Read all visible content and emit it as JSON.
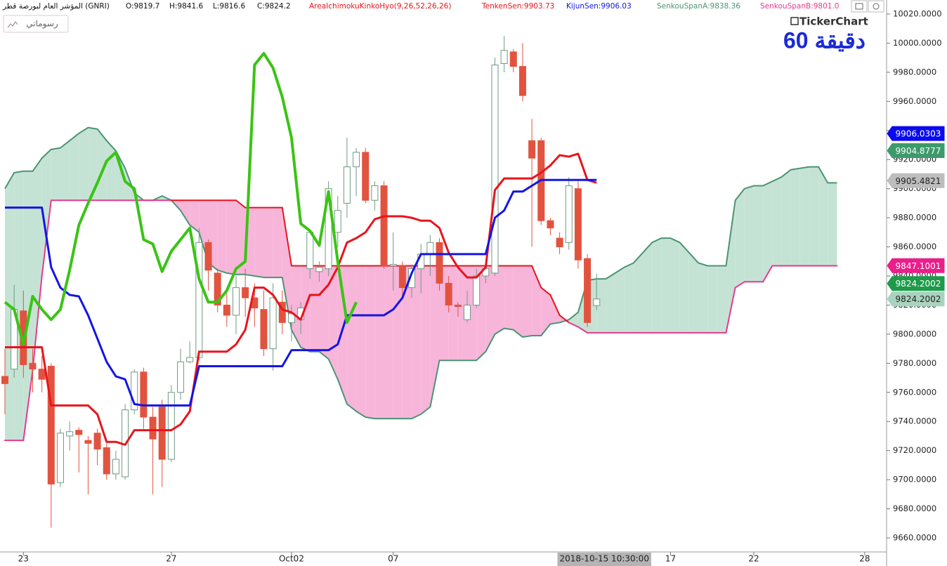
{
  "header": {
    "symbol": "المؤشر العام لبورصة قطر (GNRI)",
    "ohlc": [
      "O:9819.7",
      "H:9841.6",
      "L:9816.6",
      "C:9824.2"
    ],
    "indicator": "AreaIchimokuKinkoHyo(9,26,52,26,26)"
  },
  "toolbar": {
    "drawings_button": "رسوماتي"
  },
  "logo": "TickerChart",
  "timeframe": "60 دقيقة",
  "chart_data": {
    "type": "candlestick",
    "categories": [
      null,
      null,
      "23",
      null,
      null,
      null,
      null,
      null,
      null,
      null,
      null,
      null,
      null,
      null,
      null,
      null,
      null,
      null,
      "27",
      null,
      null,
      null,
      null,
      null,
      null,
      null,
      null,
      null,
      null,
      null,
      null,
      "Oct02",
      null,
      null,
      null,
      null,
      null,
      null,
      null,
      null,
      null,
      null,
      "07",
      null,
      null,
      null,
      null,
      null,
      null,
      null,
      null,
      null,
      null,
      null,
      null,
      null,
      null,
      null,
      null,
      null,
      null,
      null,
      null,
      null,
      "2018-10-15 10:30:00",
      null,
      null,
      null,
      null,
      null,
      null,
      null,
      "17",
      null,
      null,
      null,
      null,
      null,
      null,
      null,
      null,
      "22",
      null,
      null,
      null,
      null,
      null,
      null,
      null,
      null,
      null,
      null,
      null,
      "28"
    ],
    "highlighted_category": 64,
    "open": [
      9771,
      9776,
      9816,
      9780,
      9776,
      9778,
      9698,
      9730,
      9734,
      9727,
      9732,
      9722,
      9704,
      9702,
      9748,
      9774,
      9743,
      9750,
      9714,
      9760,
      9781,
      9784,
      9863,
      9842,
      9820,
      9813,
      9832,
      9825,
      9817,
      9790,
      9822,
      9808,
      9810,
      9845,
      9843,
      9845,
      9870,
      9890,
      9915,
      9925,
      9892,
      9902,
      9847,
      9847,
      9832,
      9845,
      9855,
      9863,
      9835,
      9820,
      9810,
      9820,
      9840,
      9842,
      9986,
      9994,
      9984,
      9933,
      9933,
      9878,
      9866,
      9863,
      9900,
      9852,
      9819.7,
      null,
      null,
      null,
      null,
      null,
      null,
      null,
      null,
      null,
      null,
      null,
      null,
      null,
      null,
      null,
      null,
      null,
      null,
      null,
      null,
      null,
      null,
      null,
      null,
      null,
      null,
      null,
      null,
      null
    ],
    "high": [
      9790,
      9834,
      9830,
      9790,
      9785,
      9780,
      9735,
      9740,
      9736,
      9730,
      9735,
      9725,
      9720,
      9752,
      9776,
      9777,
      9750,
      9755,
      9765,
      9790,
      9795,
      9873,
      9865,
      9845,
      9830,
      9840,
      9845,
      9835,
      9830,
      9835,
      9830,
      9820,
      9822,
      9872,
      9850,
      9905,
      9895,
      9935,
      9928,
      9928,
      9905,
      9905,
      9870,
      9850,
      9848,
      9862,
      9868,
      9866,
      9840,
      9822,
      9830,
      9845,
      9848,
      9990,
      10005,
      9996,
      10000,
      9948,
      9935,
      9880,
      9870,
      9908,
      9905,
      9855,
      9841.6,
      null,
      null,
      null,
      null,
      null,
      null,
      null,
      null,
      null,
      null,
      null,
      null,
      null,
      null,
      null,
      null,
      null,
      null,
      null,
      null,
      null,
      null,
      null,
      null,
      null,
      null,
      null,
      null,
      null
    ],
    "low": [
      9745,
      9770,
      9770,
      9760,
      9760,
      9667,
      9695,
      9720,
      9705,
      9690,
      9710,
      9700,
      9700,
      9700,
      9745,
      9735,
      9690,
      9695,
      9712,
      9755,
      9780,
      9782,
      9830,
      9815,
      9805,
      9800,
      9812,
      9805,
      9785,
      9775,
      9800,
      9795,
      9800,
      9838,
      9836,
      9840,
      9860,
      9880,
      9895,
      9890,
      9885,
      9845,
      9830,
      9825,
      9825,
      9828,
      9840,
      9830,
      9815,
      9812,
      9808,
      9818,
      9835,
      9840,
      9980,
      9980,
      9960,
      9860,
      9875,
      9868,
      9855,
      9858,
      9845,
      9805,
      9816.6,
      null,
      null,
      null,
      null,
      null,
      null,
      null,
      null,
      null,
      null,
      null,
      null,
      null,
      null,
      null,
      null,
      null,
      null,
      null,
      null,
      null,
      null,
      null,
      null,
      null,
      null,
      null,
      null,
      null
    ],
    "close": [
      9766,
      9817,
      9779,
      9776,
      9769,
      9697,
      9732,
      9733,
      9731,
      9725,
      9721,
      9704,
      9714,
      9748,
      9774,
      9743,
      9728,
      9714,
      9760,
      9781,
      9784,
      9863,
      9844,
      9820,
      9813,
      9832,
      9825,
      9818,
      9790,
      9825,
      9808,
      9814,
      9818,
      9870,
      9846,
      9900,
      9885,
      9915,
      9925,
      9892,
      9902,
      9847,
      9848,
      9832,
      9845,
      9855,
      9863,
      9835,
      9820,
      9819,
      9820,
      9840,
      9845,
      9985,
      9995,
      9984,
      9964,
      9921,
      9878,
      9873,
      9860,
      9902,
      9851,
      9808,
      9824.2,
      null,
      null,
      null,
      null,
      null,
      null,
      null,
      null,
      null,
      null,
      null,
      null,
      null,
      null,
      null,
      null,
      null,
      null,
      null,
      null,
      null,
      null,
      null,
      null,
      null,
      null,
      null,
      null,
      null
    ],
    "up_color": "#6f9a84",
    "down_color": "#e2533f",
    "series": [
      {
        "name": "TenkenSen:9903.73",
        "color": "#e8141c",
        "width": 3,
        "values": [
          9791,
          9791,
          9791,
          9791,
          9791,
          9751,
          9751,
          9751,
          9751,
          9751,
          9745,
          9726,
          9726,
          9724,
          9734,
          9734,
          9734,
          9734,
          9734,
          9738,
          9747,
          9788,
          9788,
          9788,
          9788,
          9793,
          9803,
          9832,
          9832,
          9827,
          9817,
          9815,
          9810,
          9827,
          9827,
          9834,
          9846,
          9863,
          9866,
          9870,
          9879,
          9881,
          9881,
          9881,
          9880,
          9878,
          9878,
          9873,
          9856,
          9846,
          9839,
          9839,
          9846,
          9899,
          9907,
          9907,
          9907,
          9907,
          9911,
          9916,
          9923,
          9922,
          9924,
          9906,
          9904,
          null,
          null,
          null,
          null,
          null,
          null,
          null,
          null,
          null,
          null,
          null,
          null,
          null,
          null,
          null,
          null,
          null,
          null,
          null,
          null,
          null,
          null,
          null,
          null,
          null,
          null,
          null,
          null,
          null
        ]
      },
      {
        "name": "KijunSen:9906.03",
        "color": "#1414e6",
        "width": 3,
        "values": [
          9887,
          9887,
          9887,
          9887,
          9887,
          9846,
          9832,
          9827,
          9826,
          9813,
          9797,
          9781,
          9771,
          9769,
          9752,
          9751,
          9751,
          9751,
          9751,
          9751,
          9751,
          9778,
          9778,
          9778,
          9778,
          9778,
          9778,
          9778,
          9778,
          9778,
          9778,
          9789,
          9789,
          9789,
          9789,
          9789,
          9793,
          9813,
          9813,
          9813,
          9813,
          9813,
          9817,
          9825,
          9842,
          9855,
          9855,
          9855,
          9855,
          9855,
          9855,
          9855,
          9855,
          9880,
          9885,
          9898,
          9898,
          9902,
          9906,
          9906,
          9906,
          9906,
          9906,
          9906,
          9906,
          null,
          null,
          null,
          null,
          null,
          null,
          null,
          null,
          null,
          null,
          null,
          null,
          null,
          null,
          null,
          null,
          null,
          null,
          null,
          null,
          null,
          null,
          null,
          null,
          null,
          null,
          null,
          null,
          null
        ]
      },
      {
        "name": "SenkouSpanA:9838.36",
        "color": "#4a9474",
        "width": 2,
        "values": [
          9900,
          9911,
          9912,
          9912,
          9921,
          9927,
          9928,
          9933,
          9938,
          9942,
          9941,
          9933,
          9926,
          9914,
          9897,
          9892,
          9892,
          9895,
          9892,
          9885,
          9875,
          9870,
          9849,
          9844,
          9842,
          9841,
          9841,
          9840,
          9839,
          9839,
          9839,
          9803,
          9791,
          9788,
          9788,
          9783,
          9769,
          9752,
          9747,
          9743,
          9742,
          9742,
          9742,
          9742,
          9742,
          9745,
          9750,
          9782,
          9782,
          9782,
          9782,
          9782,
          9788,
          9800,
          9804,
          9803,
          9798,
          9799,
          9799,
          9807,
          9808,
          9810,
          9815,
          9837,
          9838,
          9838,
          9842,
          9846,
          9849,
          9856,
          9863,
          9866,
          9866,
          9863,
          9856,
          9849,
          9847,
          9847,
          9847,
          9892,
          9900,
          9902,
          9902,
          9905,
          9908,
          9913,
          9914,
          9915,
          9915,
          9904,
          9904,
          null,
          null,
          null
        ]
      },
      {
        "name": "SenkouSpanB:9801.0",
        "color": "#e5398f",
        "width": 2,
        "values": [
          9727,
          9727,
          9727,
          9775,
          9840,
          9892,
          9892,
          9892,
          9892,
          9892,
          9892,
          9892,
          9892,
          9892,
          9892,
          9892,
          9892,
          9892,
          9892,
          9892,
          9892,
          9892,
          9892,
          9892,
          9892,
          9892,
          9887,
          9887,
          9887,
          9887,
          9887,
          9847,
          9847,
          9847,
          9847,
          9847,
          9847,
          9847,
          9847,
          9847,
          9847,
          9847,
          9847,
          9847,
          9847,
          9847,
          9847,
          9847,
          9847,
          9847,
          9847,
          9847,
          9847,
          9847,
          9847,
          9847,
          9847,
          9847,
          9832,
          9827,
          9813,
          9808,
          9805,
          9801,
          9801,
          9801,
          9801,
          9801,
          9801,
          9801,
          9801,
          9801,
          9801,
          9801,
          9801,
          9801,
          9801,
          9801,
          9801,
          9832,
          9836,
          9836,
          9836,
          9847,
          9847,
          9847,
          9847,
          9847,
          9847,
          9847,
          9847,
          null,
          null,
          null
        ]
      },
      {
        "color": "#3ac414",
        "width": 4,
        "values": [
          9822,
          9817,
          9793,
          9826,
          9817,
          9810,
          9817,
          9844,
          9875,
          9890,
          9904,
          9919,
          9925,
          9905,
          9900,
          9865,
          9862,
          9843,
          9857,
          9865,
          9873,
          9838,
          9822,
          9822,
          9830,
          9845,
          9850,
          9985,
          9993,
          9983,
          9963,
          9935,
          9876,
          9871,
          9861,
          9898,
          9850,
          9808,
          9822,
          null,
          null,
          null,
          null,
          null,
          null,
          null,
          null,
          null,
          null,
          null,
          null,
          null,
          null,
          null,
          null,
          null,
          null,
          null,
          null,
          null,
          null,
          null,
          null,
          null,
          null,
          null,
          null,
          null,
          null,
          null,
          null,
          null,
          null,
          null,
          null,
          null,
          null,
          null,
          null,
          null,
          null,
          null,
          null,
          null,
          null,
          null,
          null,
          null,
          null,
          null,
          null,
          null,
          null,
          null
        ]
      }
    ],
    "cloud": [
      2,
      3
    ],
    "cloud_colors": {
      "bullish": "#c5e3d4",
      "bearish": "#f7b5da",
      "bearish_edge": "#e8141c"
    },
    "ylim": [
      9650.35,
      10029.65
    ],
    "yticks": [
      {
        "value": 9660,
        "label": "9660.0000"
      },
      {
        "value": 9680,
        "label": "9680.0000"
      },
      {
        "value": 9700,
        "label": "9700.0000"
      },
      {
        "value": 9720,
        "label": "9720.0000"
      },
      {
        "value": 9740,
        "label": "9740.0000"
      },
      {
        "value": 9760,
        "label": "9760.0000"
      },
      {
        "value": 9780,
        "label": "9780.0000"
      },
      {
        "value": 9800,
        "label": "9800.0000"
      },
      {
        "value": 9820,
        "label": "9820.0000"
      },
      {
        "value": 9840,
        "label": "9840.0000"
      },
      {
        "value": 9860,
        "label": "9860.0000"
      },
      {
        "value": 9880,
        "label": "9880.0000"
      },
      {
        "value": 9900,
        "label": "9900.0000"
      },
      {
        "value": 9920,
        "label": "9920.0000"
      },
      {
        "value": 9940,
        "label": "9940.0000"
      },
      {
        "value": 9960,
        "label": "9960.0000"
      },
      {
        "value": 9980,
        "label": "9980.0000"
      },
      {
        "value": 10000,
        "label": "10000.0000"
      },
      {
        "value": 10020,
        "label": "10020.0000"
      }
    ],
    "price_tags": [
      {
        "value": 9905.4821,
        "color": "#bdbdbd",
        "text_color": "#222"
      },
      {
        "value": 9904.8777,
        "color": "#3d9a6b",
        "text_color": "#fff"
      },
      {
        "value": 9906.0303,
        "color": "#0a0af0",
        "text_color": "#fff"
      },
      {
        "value": 9847.1001,
        "color": "#ea1f8a",
        "text_color": "#fff"
      },
      {
        "value": 9824.2002,
        "color": "#a9d3bf",
        "text_color": "#222"
      },
      {
        "value": 9824.2002,
        "color": "#1e9a4a",
        "text_color": "#fff"
      }
    ],
    "grid": false
  }
}
